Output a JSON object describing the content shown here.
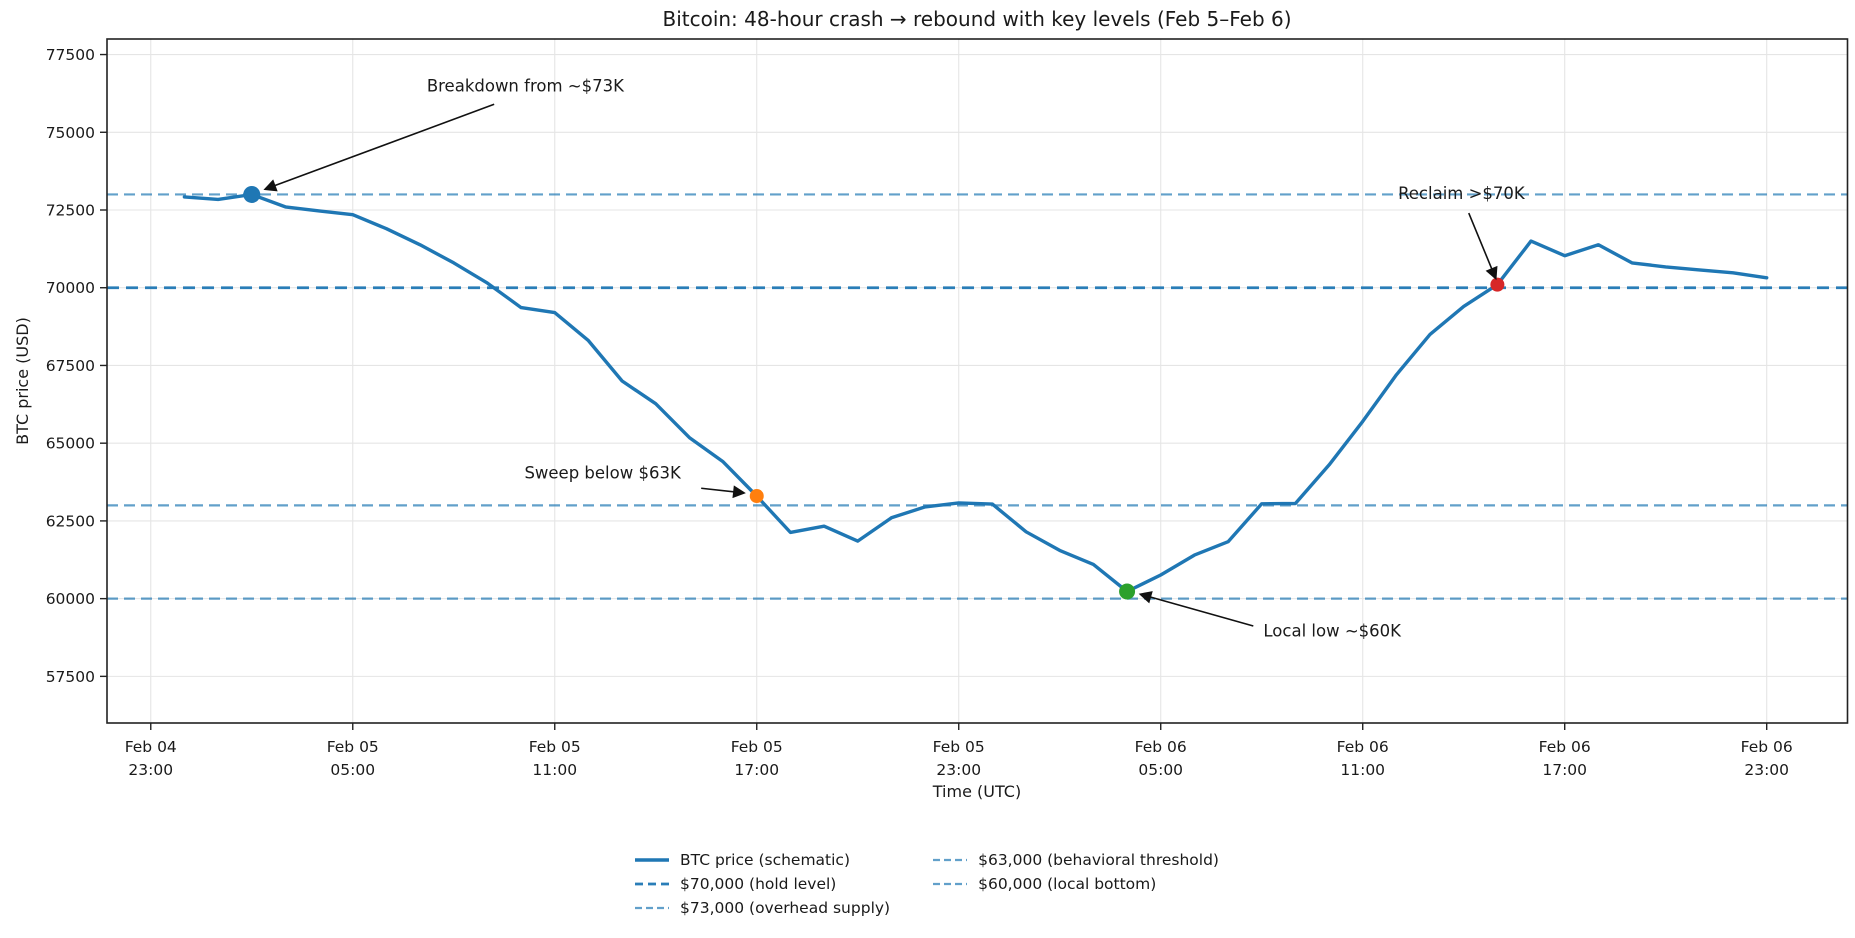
{
  "chart_data": {
    "type": "line",
    "title": "Bitcoin: 48-hour crash → rebound with key levels (Feb 5–Feb 6)",
    "xlabel": "Time (UTC)",
    "ylabel": "BTC price (USD)",
    "x_unit": "hours after Feb 04 23:00 UTC",
    "xlim": [
      -1.3,
      50.4
    ],
    "ylim": [
      56000,
      78000
    ],
    "grid": true,
    "yticks": [
      57500,
      60000,
      62500,
      65000,
      67500,
      70000,
      72500,
      75000,
      77500
    ],
    "xticks": [
      {
        "x": 0,
        "label": "Feb 04\n23:00"
      },
      {
        "x": 6,
        "label": "Feb 05\n05:00"
      },
      {
        "x": 12,
        "label": "Feb 05\n11:00"
      },
      {
        "x": 18,
        "label": "Feb 05\n17:00"
      },
      {
        "x": 24,
        "label": "Feb 05\n23:00"
      },
      {
        "x": 30,
        "label": "Feb 06\n05:00"
      },
      {
        "x": 36,
        "label": "Feb 06\n11:00"
      },
      {
        "x": 42,
        "label": "Feb 06\n17:00"
      },
      {
        "x": 48,
        "label": "Feb 06\n23:00"
      }
    ],
    "series": [
      {
        "name": "BTC price (schematic)",
        "color": "#1f77b4",
        "line_width": 3.4,
        "x": [
          1,
          2,
          3,
          4,
          5,
          6,
          7,
          8,
          9,
          10,
          11,
          12,
          13,
          14,
          15,
          16,
          17,
          18,
          19,
          20,
          21,
          22,
          23,
          24,
          25,
          26,
          27,
          28,
          29,
          30,
          31,
          32,
          33,
          34,
          35,
          36,
          37,
          38,
          39,
          40,
          41,
          42,
          43,
          44,
          45,
          46,
          47,
          48
        ],
        "values": [
          72920,
          72840,
          73000,
          72600,
          72470,
          72350,
          71900,
          71380,
          70800,
          70150,
          69360,
          69200,
          68300,
          67000,
          66270,
          65180,
          64400,
          63300,
          62130,
          62330,
          61850,
          62600,
          62950,
          63080,
          63040,
          62150,
          61550,
          61100,
          60230,
          60760,
          61400,
          61830,
          63050,
          63060,
          64300,
          65700,
          67200,
          68500,
          69400,
          70100,
          71500,
          71030,
          71380,
          70800,
          70670,
          70575,
          70480,
          70320
        ]
      }
    ],
    "hlines": [
      {
        "value": 73000,
        "label": "$73,000 (overhead supply)",
        "color": "rgba(31,119,180,0.7)",
        "width": 2.2,
        "dash": [
          11,
          6
        ]
      },
      {
        "value": 70000,
        "label": "$70,000 (hold level)",
        "color": "rgba(31,119,180,0.95)",
        "width": 2.8,
        "dash": [
          12,
          7
        ]
      },
      {
        "value": 63000,
        "label": "$63,000 (behavioral threshold)",
        "color": "rgba(31,119,180,0.7)",
        "width": 2.2,
        "dash": [
          11,
          6
        ]
      },
      {
        "value": 60000,
        "label": "$60,000 (local bottom)",
        "color": "rgba(31,119,180,0.7)",
        "width": 2.2,
        "dash": [
          11,
          6
        ]
      }
    ],
    "markers": [
      {
        "id": "breakdown",
        "x": 3,
        "value": 73000,
        "color": "#1f77b4",
        "r": 8.5
      },
      {
        "id": "sweep",
        "x": 18,
        "value": 63300,
        "color": "#ff7f0e",
        "r": 7
      },
      {
        "id": "local-low",
        "x": 29,
        "value": 60230,
        "color": "#2ca02c",
        "r": 8
      },
      {
        "id": "reclaim",
        "x": 40,
        "value": 70100,
        "color": "#d62728",
        "r": 7
      }
    ],
    "annotations": [
      {
        "id": "breakdown",
        "text": "Breakdown from ~$73K",
        "text_at": [
          8.2,
          76500
        ],
        "arrow_from": [
          10.2,
          75900
        ],
        "arrow_to": [
          3.4,
          73170
        ]
      },
      {
        "id": "sweep",
        "text": "Sweep below $63K",
        "text_at": [
          11.1,
          64050
        ],
        "arrow_from": [
          16.35,
          63550
        ],
        "arrow_to": [
          17.62,
          63400
        ]
      },
      {
        "id": "local-low",
        "text": "Local low ~$60K",
        "text_at": [
          33.05,
          58980
        ],
        "arrow_from": [
          32.75,
          59120
        ],
        "arrow_to": [
          29.4,
          60140
        ]
      },
      {
        "id": "reclaim",
        "text": "Reclaim >$70K",
        "text_at": [
          37.05,
          73050
        ],
        "arrow_from": [
          39.15,
          72400
        ],
        "arrow_to": [
          39.95,
          70300
        ]
      }
    ]
  },
  "legend": {
    "note": "labels mirror series + hlines, column-major order"
  }
}
